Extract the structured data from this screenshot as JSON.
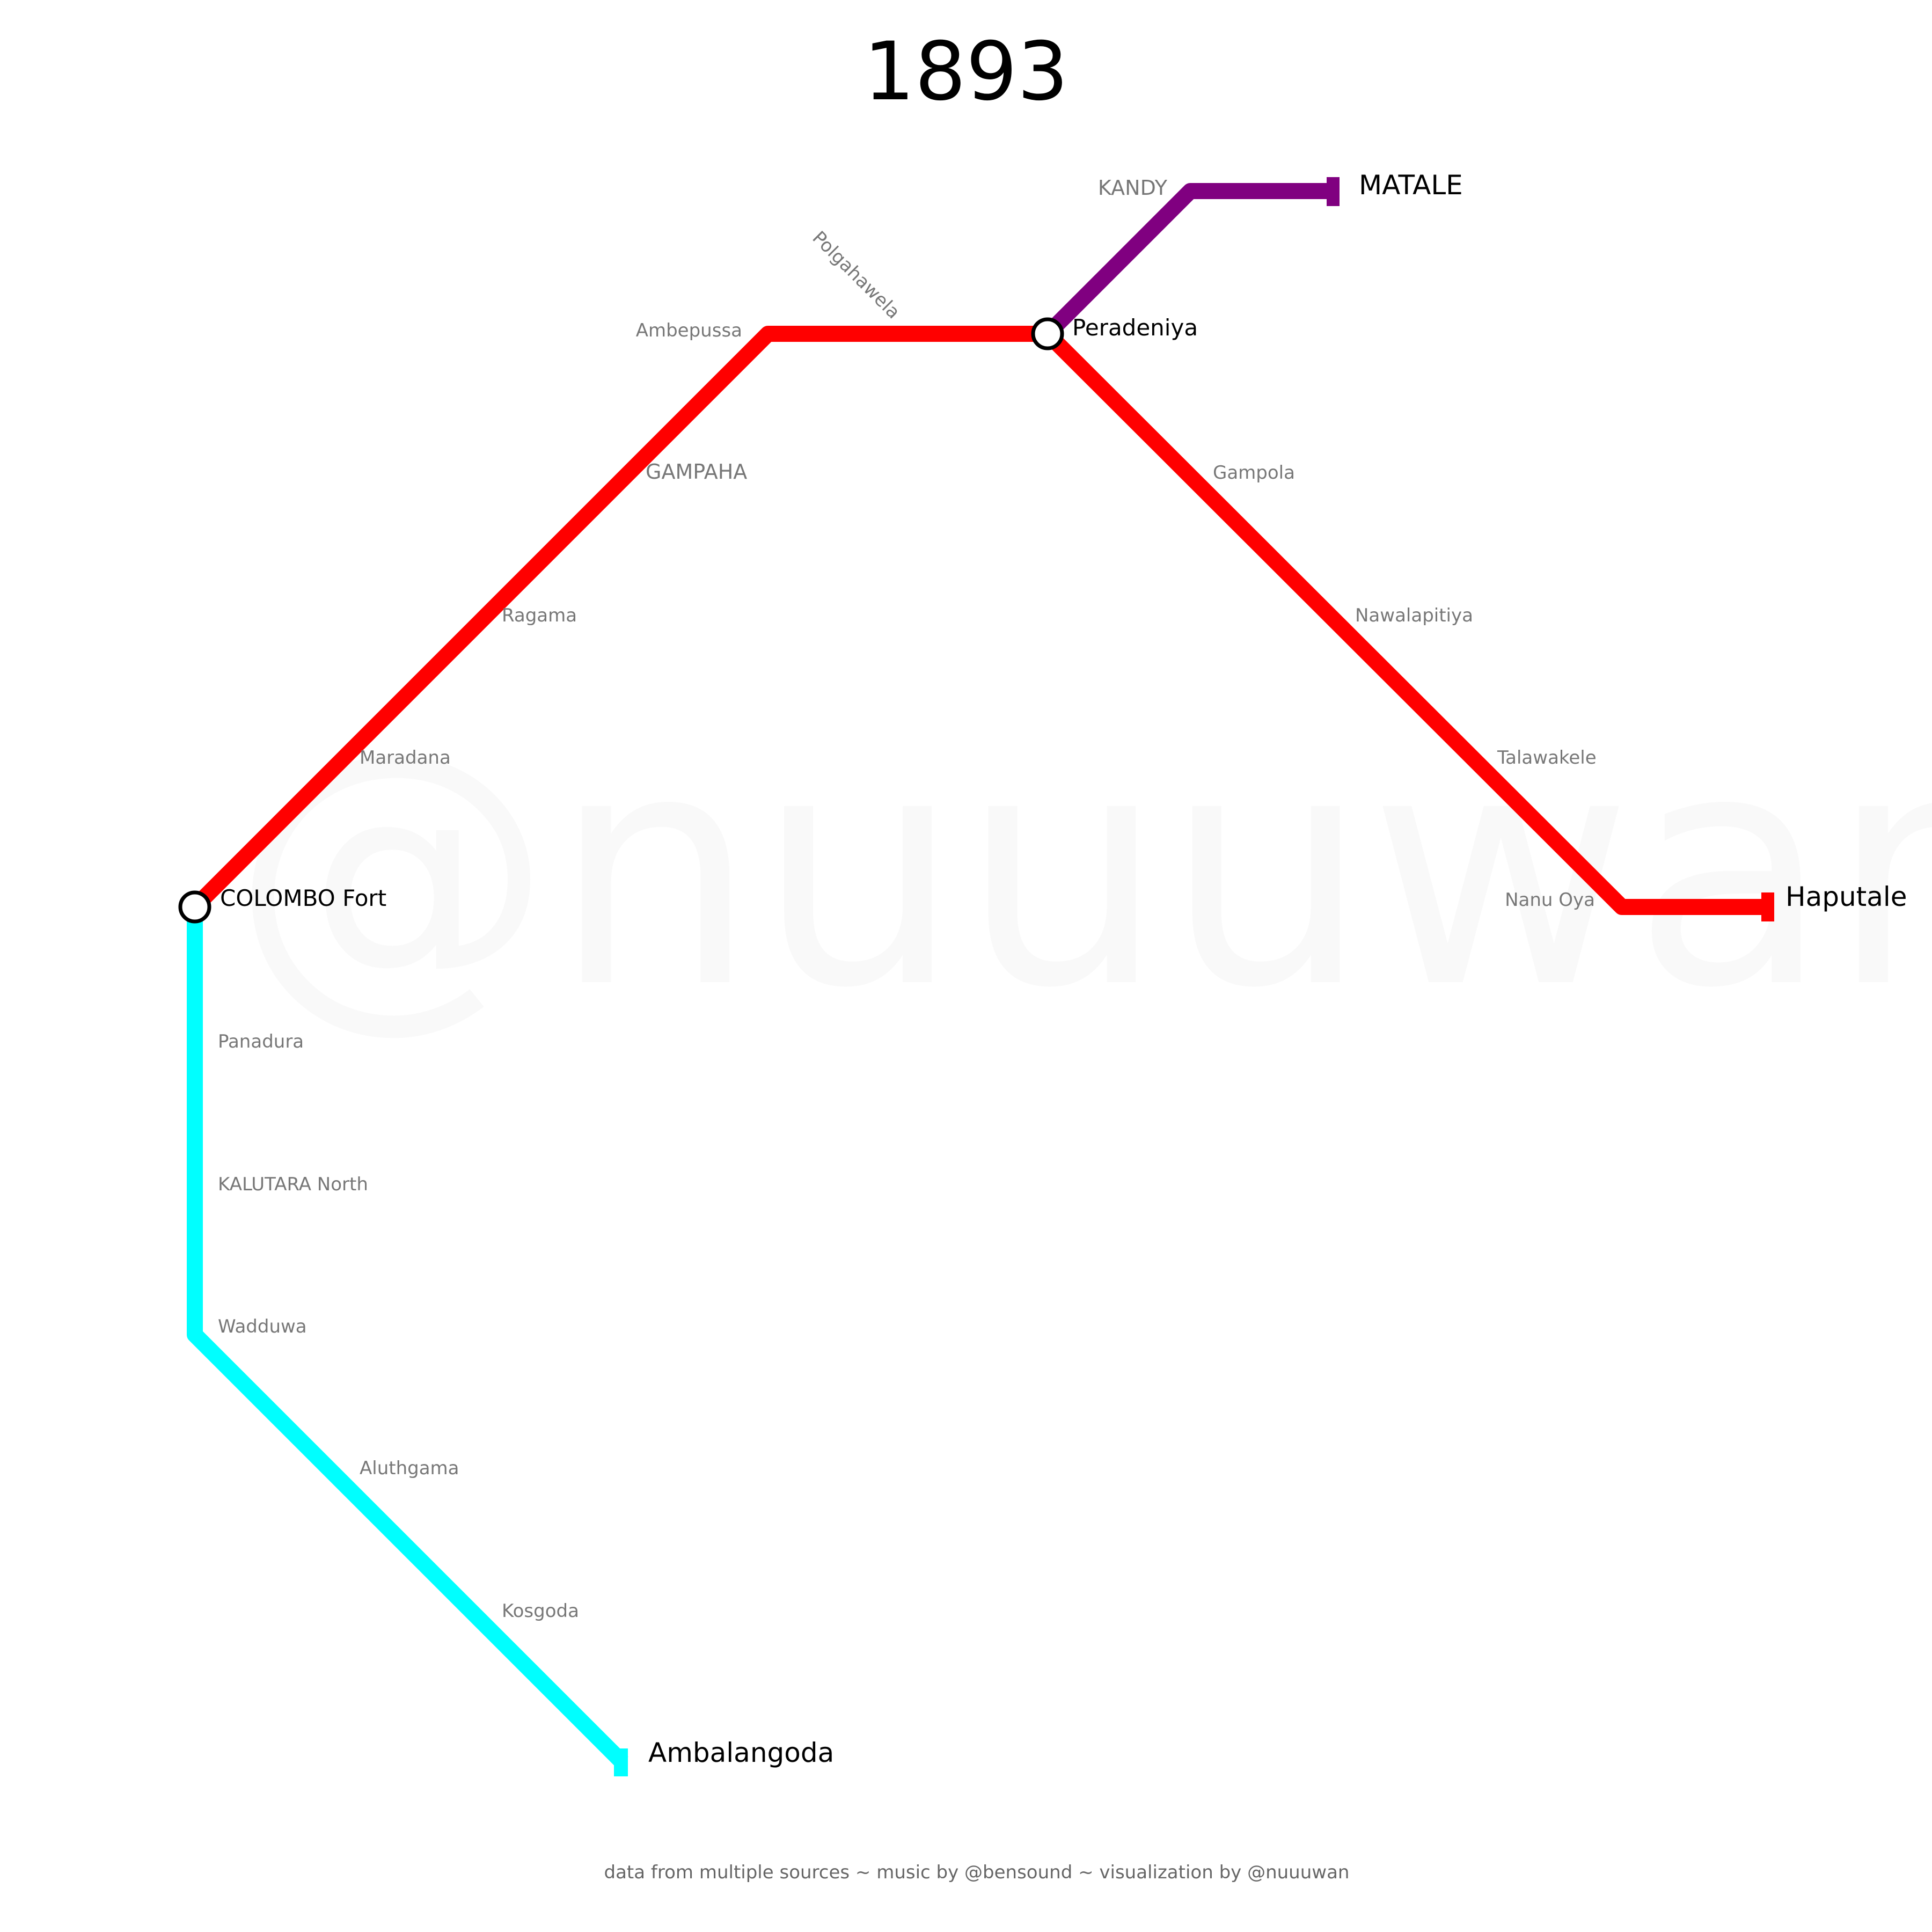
{
  "title": "1893",
  "watermark": "@nuuuwan",
  "footer": "data from multiple sources ~ music by @bensound ~ visualization by @nuuuwan",
  "colors": {
    "main_line": "#ff0000",
    "coast_line": "#00ffff",
    "matale_line": "#800080",
    "background": "#ffffff"
  },
  "lines": [
    {
      "name": "main-line",
      "color": "#ff0000"
    },
    {
      "name": "coast-line",
      "color": "#00ffff"
    },
    {
      "name": "matale-line",
      "color": "#800080"
    }
  ],
  "stations": {
    "colombo_fort": "COLOMBO Fort",
    "maradana": "Maradana",
    "ragama": "Ragama",
    "gampaha": "GAMPAHA",
    "ambepussa": "Ambepussa",
    "polgahawela": "Polgahawela",
    "peradeniya": "Peradeniya",
    "kandy": "KANDY",
    "matale": "MATALE",
    "gampola": "Gampola",
    "nawalapitiya": "Nawalapitiya",
    "talawakele": "Talawakele",
    "nanu_oya": "Nanu Oya",
    "haputale": "Haputale",
    "panadura": "Panadura",
    "kalutara_north": "KALUTARA North",
    "wadduwa": "Wadduwa",
    "aluthgama": "Aluthgama",
    "kosgoda": "Kosgoda",
    "ambalangoda": "Ambalangoda"
  }
}
